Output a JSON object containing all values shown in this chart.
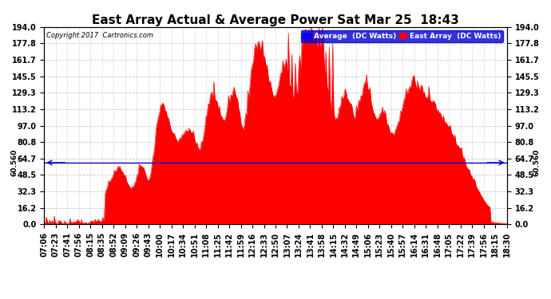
{
  "title": "East Array Actual & Average Power Sat Mar 25  18:43",
  "copyright": "Copyright 2017  Cartronics.com",
  "legend_labels": [
    "Average  (DC Watts)",
    "East Array  (DC Watts)"
  ],
  "legend_colors": [
    "#0000ff",
    "#ff0000"
  ],
  "avg_line_value": 60.56,
  "avg_label": "60.560",
  "ylim": [
    0.0,
    194.0
  ],
  "yticks": [
    0.0,
    16.2,
    32.3,
    48.5,
    64.7,
    80.8,
    97.0,
    113.2,
    129.3,
    145.5,
    161.7,
    177.8,
    194.0
  ],
  "background_color": "#ffffff",
  "grid_color": "#c8c8c8",
  "fill_color": "#ff0000",
  "avg_line_color": "#0000cc",
  "title_fontsize": 11,
  "tick_fontsize": 7,
  "label_fontsize": 6.5,
  "num_points": 410,
  "tick_labels": [
    "07:06",
    "07:23",
    "07:41",
    "07:56",
    "08:15",
    "08:35",
    "08:52",
    "09:09",
    "09:26",
    "09:43",
    "10:00",
    "10:17",
    "10:34",
    "10:51",
    "11:08",
    "11:25",
    "11:42",
    "11:59",
    "12:16",
    "12:33",
    "12:50",
    "13:07",
    "13:24",
    "13:41",
    "13:58",
    "14:15",
    "14:32",
    "14:49",
    "15:06",
    "15:23",
    "15:40",
    "15:57",
    "16:14",
    "16:31",
    "16:48",
    "17:05",
    "17:22",
    "17:39",
    "17:56",
    "18:15",
    "18:30"
  ]
}
